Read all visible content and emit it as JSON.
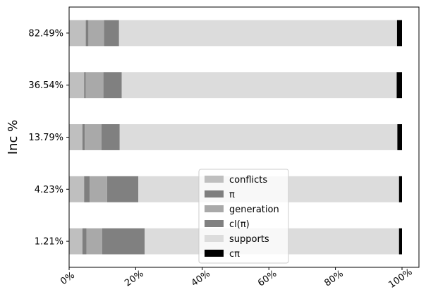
{
  "chart_data": {
    "type": "bar",
    "orientation": "horizontal",
    "stacked": true,
    "title": "",
    "xlabel": "",
    "ylabel": "Inc %",
    "xlim": [
      0,
      1
    ],
    "x_ticks": [
      "0%",
      "20%",
      "40%",
      "60%",
      "80%",
      "100%"
    ],
    "categories": [
      "1.21%",
      "4.23%",
      "13.79%",
      "36.54%",
      "82.49%"
    ],
    "legend_position": "lower-center",
    "grid": false,
    "series": [
      {
        "name": "conflicts",
        "color": "#bfbfbf",
        "values": [
          0.04,
          0.045,
          0.04,
          0.045,
          0.05
        ]
      },
      {
        "name": "π",
        "color": "#7f7f7f",
        "values": [
          0.012,
          0.017,
          0.007,
          0.005,
          0.008
        ]
      },
      {
        "name": "generation",
        "color": "#a9a9a9",
        "values": [
          0.047,
          0.052,
          0.05,
          0.053,
          0.047
        ]
      },
      {
        "name": "cl(π)",
        "color": "#808080",
        "values": [
          0.128,
          0.094,
          0.055,
          0.055,
          0.045
        ]
      },
      {
        "name": "supports",
        "color": "#dcdcdc",
        "values": [
          0.764,
          0.783,
          0.834,
          0.826,
          0.835
        ]
      },
      {
        "name": "cπ",
        "color": "#000000",
        "values": [
          0.009,
          0.009,
          0.014,
          0.016,
          0.015
        ]
      }
    ]
  }
}
